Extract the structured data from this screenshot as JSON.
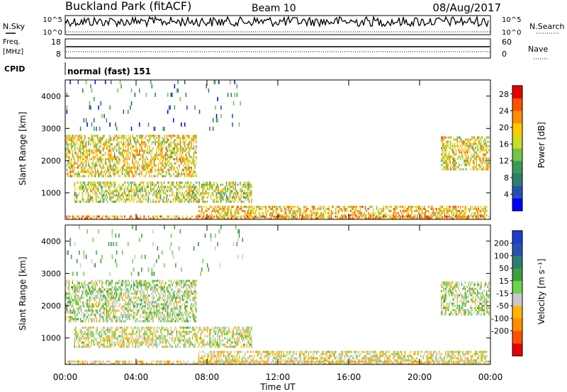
{
  "header": {
    "site": "Buckland Park (fitACF)",
    "beam": "Beam 10",
    "date": "08/Aug/2017"
  },
  "noise_panel": {
    "left_label": "N.Sky",
    "right_label": "N.Search",
    "left_ticks": [
      "10^5",
      "10^0"
    ],
    "right_ticks": [
      "10^5",
      "10^0"
    ]
  },
  "freq_panel": {
    "left_label_1": "Freq.",
    "left_label_2": "[MHz]",
    "right_label": "Nave",
    "left_ticks": [
      "18",
      "8"
    ],
    "right_ticks": [
      "60",
      "0"
    ]
  },
  "cpid_panel": {
    "label": "CPID",
    "mode": "normal (fast) 151"
  },
  "x_axis": {
    "label": "Time UT",
    "ticks": [
      "00:00",
      "04:00",
      "08:00",
      "12:00",
      "16:00",
      "20:00",
      "00:00"
    ]
  },
  "power_panel": {
    "ylabel": "Slant Range [km]",
    "yticks": [
      "1000",
      "2000",
      "3000",
      "4000"
    ],
    "colorbar_label": "Power [dB]",
    "colorbar_ticks": [
      "4",
      "8",
      "12",
      "16",
      "20",
      "24",
      "28"
    ]
  },
  "velocity_panel": {
    "ylabel": "Slant Range [km]",
    "yticks": [
      "1000",
      "2000",
      "3000",
      "4000"
    ],
    "colorbar_label": "Velocity [m s⁻¹]",
    "colorbar_ticks": [
      "200",
      "100",
      "50",
      "15",
      "-15",
      "-50",
      "-100",
      "-200"
    ]
  },
  "chart_data": {
    "type": "heatmap",
    "x_range_hours": [
      0,
      24
    ],
    "y_range_km": [
      180,
      4500
    ],
    "power_scale_db": [
      0,
      30
    ],
    "velocity_scale_ms": [
      -250,
      250
    ],
    "power_colors": [
      "#0000ff",
      "#2850b4",
      "#2e7d6e",
      "#3a9a5a",
      "#74c44c",
      "#c8dc28",
      "#ffc800",
      "#ff8c00",
      "#ff5000",
      "#e60000"
    ],
    "velocity_colors": [
      "#e60000",
      "#ff5000",
      "#ff8c00",
      "#ffb400",
      "#c8c8c8",
      "#6ed24a",
      "#3ca03c",
      "#2e7d6e",
      "#2850b4",
      "#1e3cd2"
    ],
    "echo_regions": [
      {
        "t": [
          0.0,
          7.4
        ],
        "r": [
          1500,
          2800
        ],
        "power_db": 18,
        "velocity_ms": 0
      },
      {
        "t": [
          0.5,
          10.5
        ],
        "r": [
          700,
          1350
        ],
        "power_db": 16,
        "velocity_ms": -20
      },
      {
        "t": [
          7.5,
          23.8
        ],
        "r": [
          250,
          600
        ],
        "power_db": 20,
        "velocity_ms": -40
      },
      {
        "t": [
          0.0,
          24.0
        ],
        "r": [
          180,
          300
        ],
        "power_db": 22,
        "velocity_ms": -60
      },
      {
        "t": [
          21.2,
          23.9
        ],
        "r": [
          1700,
          2750
        ],
        "power_db": 18,
        "velocity_ms": 0
      },
      {
        "t": [
          0.0,
          10.0
        ],
        "r": [
          3000,
          4500
        ],
        "power_db": 8,
        "velocity_ms": 30
      }
    ]
  }
}
